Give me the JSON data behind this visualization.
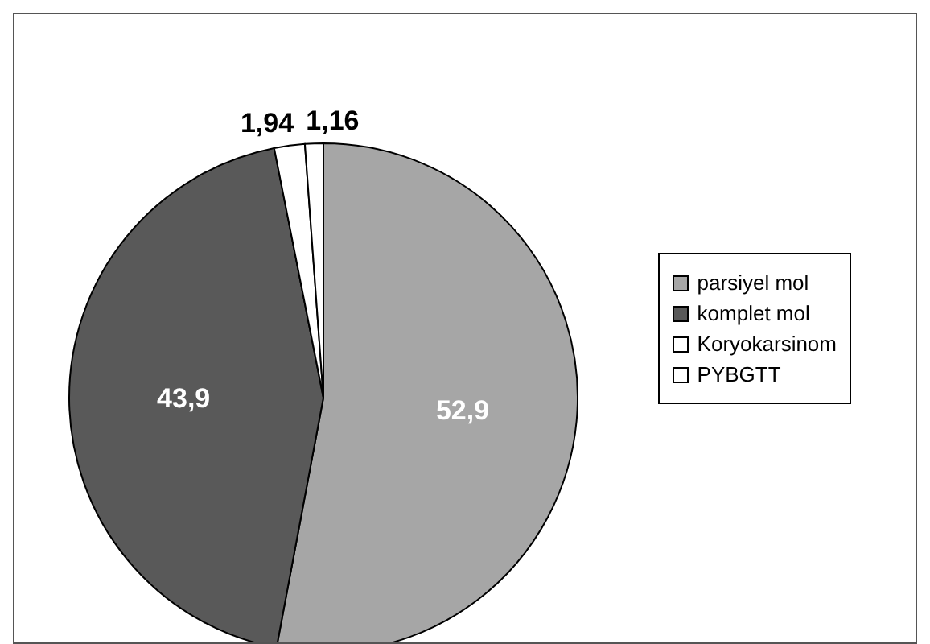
{
  "chart_data": {
    "type": "pie",
    "categories": [
      "parsiyel mol",
      "komplet mol",
      "Koryokarsinom",
      "PYBGTT"
    ],
    "values": [
      52.9,
      43.9,
      1.94,
      1.16
    ],
    "colors": [
      "#a6a6a6",
      "#595959",
      "#ffffff",
      "#ffffff"
    ],
    "value_labels": [
      "52,9",
      "43,9",
      "1,94",
      "1,16"
    ],
    "legend": "right"
  }
}
